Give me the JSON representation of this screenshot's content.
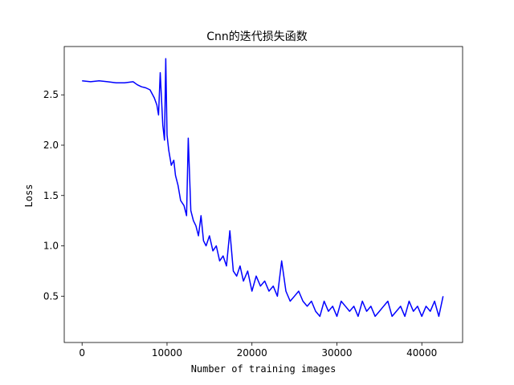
{
  "chart_data": {
    "type": "line",
    "title": "Cnn的迭代损失函数",
    "xlabel": "Number of training images",
    "ylabel": "Loss",
    "xlim": [
      -2100,
      44800
    ],
    "ylim": [
      0.04,
      2.98
    ],
    "xticks": [
      0,
      10000,
      20000,
      30000,
      40000
    ],
    "xtick_labels": [
      "0",
      "10000",
      "20000",
      "30000",
      "40000"
    ],
    "yticks": [
      0.5,
      1.0,
      1.5,
      2.0,
      2.5
    ],
    "ytick_labels": [
      "0.5",
      "1.0",
      "1.5",
      "2.0",
      "2.5"
    ],
    "grid": false,
    "legend": "none",
    "line_color": "#0000ff",
    "series": [
      {
        "x": [
          0,
          1000,
          2000,
          3000,
          4000,
          5000,
          6000,
          6500,
          7000,
          7500,
          8000,
          8500,
          8800,
          9000,
          9200,
          9500,
          9700,
          9850,
          10000,
          10200,
          10500,
          10800,
          11000,
          11300,
          11600,
          12000,
          12300,
          12500,
          12800,
          13100,
          13400,
          13700,
          14000,
          14300,
          14600,
          15000,
          15400,
          15800,
          16200,
          16600,
          17000,
          17400,
          17800,
          18200,
          18600,
          19000,
          19500,
          20000,
          20500,
          21000,
          21500,
          22000,
          22500,
          23000,
          23500,
          24000,
          24500,
          25000,
          25500,
          26000,
          26500,
          27000,
          27500,
          28000,
          28500,
          29000,
          29500,
          30000,
          30500,
          31000,
          31500,
          32000,
          32500,
          33000,
          33500,
          34000,
          34500,
          35000,
          35500,
          36000,
          36500,
          37000,
          37500,
          38000,
          38500,
          39000,
          39500,
          40000,
          40500,
          41000,
          41500,
          42000,
          42500
        ],
        "values": [
          2.64,
          2.63,
          2.64,
          2.63,
          2.62,
          2.62,
          2.63,
          2.6,
          2.58,
          2.57,
          2.55,
          2.47,
          2.4,
          2.3,
          2.72,
          2.2,
          2.05,
          2.86,
          2.1,
          1.95,
          1.8,
          1.85,
          1.7,
          1.6,
          1.45,
          1.4,
          1.3,
          2.07,
          1.35,
          1.25,
          1.2,
          1.1,
          1.3,
          1.05,
          1.0,
          1.1,
          0.95,
          1.0,
          0.85,
          0.9,
          0.8,
          1.15,
          0.75,
          0.7,
          0.8,
          0.65,
          0.75,
          0.55,
          0.7,
          0.6,
          0.65,
          0.55,
          0.6,
          0.5,
          0.85,
          0.55,
          0.45,
          0.5,
          0.55,
          0.45,
          0.4,
          0.45,
          0.35,
          0.3,
          0.45,
          0.35,
          0.4,
          0.3,
          0.45,
          0.4,
          0.35,
          0.4,
          0.3,
          0.45,
          0.35,
          0.4,
          0.3,
          0.35,
          0.4,
          0.45,
          0.3,
          0.35,
          0.4,
          0.3,
          0.45,
          0.35,
          0.4,
          0.3,
          0.4,
          0.35,
          0.45,
          0.3,
          0.5
        ]
      }
    ]
  }
}
